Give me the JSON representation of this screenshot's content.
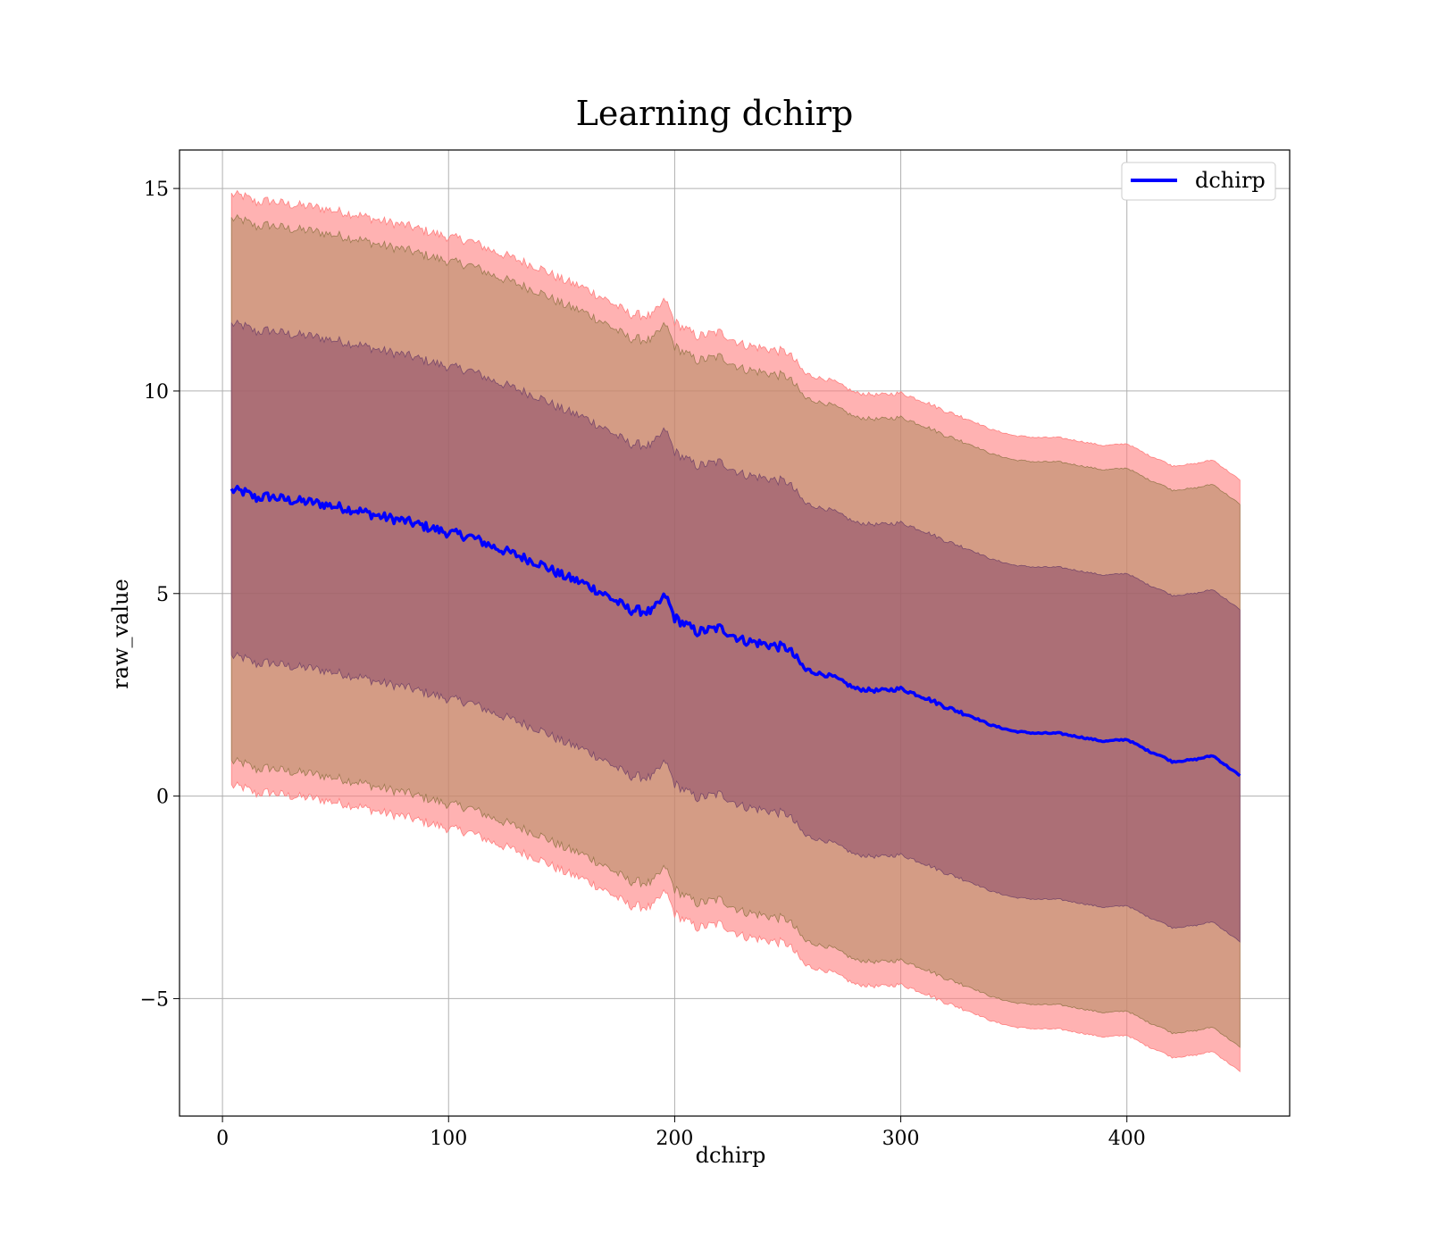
{
  "chart_data": {
    "type": "area",
    "title": "Learning dchirp",
    "xlabel": "dchirp",
    "ylabel": "raw_value",
    "xlim": [
      -19,
      472
    ],
    "ylim": [
      -7.9,
      15.95
    ],
    "xticks": [
      0,
      100,
      200,
      300,
      400
    ],
    "xtick_labels": [
      "0",
      "100",
      "200",
      "300",
      "400"
    ],
    "yticks": [
      -5,
      0,
      5,
      10,
      15
    ],
    "ytick_labels": [
      "−5",
      "0",
      "5",
      "10",
      "15"
    ],
    "grid": true,
    "legend": {
      "position": "top-right",
      "entries": [
        "dchirp"
      ]
    },
    "colors": {
      "mean_line": "#0000ff",
      "band_outer": "#ff7f7f",
      "band_middle": "#b08a60",
      "band_inner": "#8a4a6a"
    },
    "band_half_widths": {
      "inner": 4.1,
      "middle": 6.7,
      "outer": 7.3
    },
    "series": [
      {
        "name": "dchirp",
        "x": [
          4,
          10,
          15,
          20,
          30,
          40,
          50,
          60,
          70,
          80,
          90,
          100,
          110,
          120,
          130,
          140,
          150,
          160,
          170,
          180,
          190,
          196,
          200,
          210,
          220,
          230,
          240,
          250,
          258,
          270,
          280,
          290,
          300,
          310,
          320,
          330,
          340,
          350,
          360,
          370,
          380,
          390,
          400,
          410,
          415,
          420,
          430,
          438,
          450
        ],
        "y": [
          7.55,
          7.5,
          7.35,
          7.4,
          7.3,
          7.25,
          7.15,
          7.05,
          6.9,
          6.8,
          6.65,
          6.5,
          6.4,
          6.15,
          5.95,
          5.75,
          5.45,
          5.25,
          4.95,
          4.6,
          4.55,
          4.95,
          4.4,
          4.05,
          4.15,
          3.85,
          3.75,
          3.65,
          3.1,
          2.95,
          2.65,
          2.6,
          2.65,
          2.45,
          2.2,
          2.0,
          1.75,
          1.6,
          1.55,
          1.55,
          1.45,
          1.35,
          1.4,
          1.1,
          1.0,
          0.85,
          0.9,
          1.0,
          0.5
        ]
      }
    ]
  }
}
